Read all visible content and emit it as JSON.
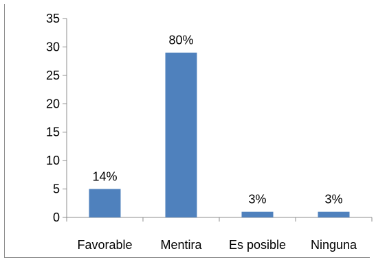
{
  "chart_data": {
    "type": "bar",
    "categories": [
      "Favorable",
      "Mentira",
      "Es posible",
      "Ninguna"
    ],
    "values": [
      5,
      29,
      1,
      1
    ],
    "data_labels": [
      "14%",
      "80%",
      "3%",
      "3%"
    ],
    "ylim": [
      0,
      35
    ],
    "yticks": [
      0,
      5,
      10,
      15,
      20,
      25,
      30,
      35
    ],
    "grid": false,
    "legend": "none",
    "bar_color": "#4f81bd"
  }
}
